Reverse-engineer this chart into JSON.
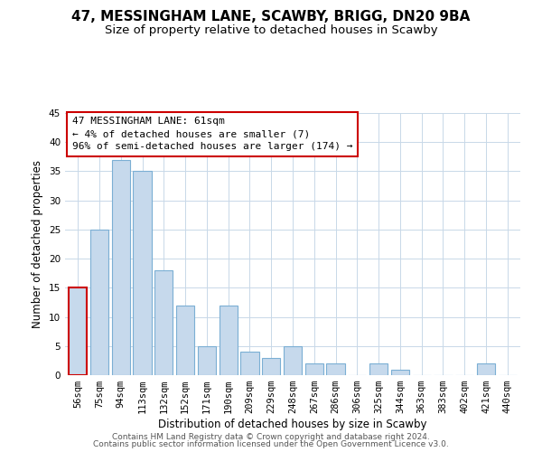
{
  "title": "47, MESSINGHAM LANE, SCAWBY, BRIGG, DN20 9BA",
  "subtitle": "Size of property relative to detached houses in Scawby",
  "xlabel": "Distribution of detached houses by size in Scawby",
  "ylabel": "Number of detached properties",
  "categories": [
    "56sqm",
    "75sqm",
    "94sqm",
    "113sqm",
    "132sqm",
    "152sqm",
    "171sqm",
    "190sqm",
    "209sqm",
    "229sqm",
    "248sqm",
    "267sqm",
    "286sqm",
    "306sqm",
    "325sqm",
    "344sqm",
    "363sqm",
    "383sqm",
    "402sqm",
    "421sqm",
    "440sqm"
  ],
  "values": [
    15,
    25,
    37,
    35,
    18,
    12,
    5,
    12,
    4,
    3,
    5,
    2,
    2,
    0,
    2,
    1,
    0,
    0,
    0,
    2,
    0
  ],
  "bar_color": "#c6d9ec",
  "bar_edge_color": "#7bafd4",
  "highlight_bar_index": 0,
  "highlight_edge_color": "#cc0000",
  "ylim": [
    0,
    45
  ],
  "yticks": [
    0,
    5,
    10,
    15,
    20,
    25,
    30,
    35,
    40,
    45
  ],
  "annotation_line1": "47 MESSINGHAM LANE: 61sqm",
  "annotation_line2": "← 4% of detached houses are smaller (7)",
  "annotation_line3": "96% of semi-detached houses are larger (174) →",
  "footer_line1": "Contains HM Land Registry data © Crown copyright and database right 2024.",
  "footer_line2": "Contains public sector information licensed under the Open Government Licence v3.0.",
  "bg_color": "#ffffff",
  "grid_color": "#c8d8e8",
  "title_fontsize": 11,
  "subtitle_fontsize": 9.5,
  "axis_label_fontsize": 8.5,
  "tick_fontsize": 7.5,
  "annotation_fontsize": 8,
  "footer_fontsize": 6.5
}
